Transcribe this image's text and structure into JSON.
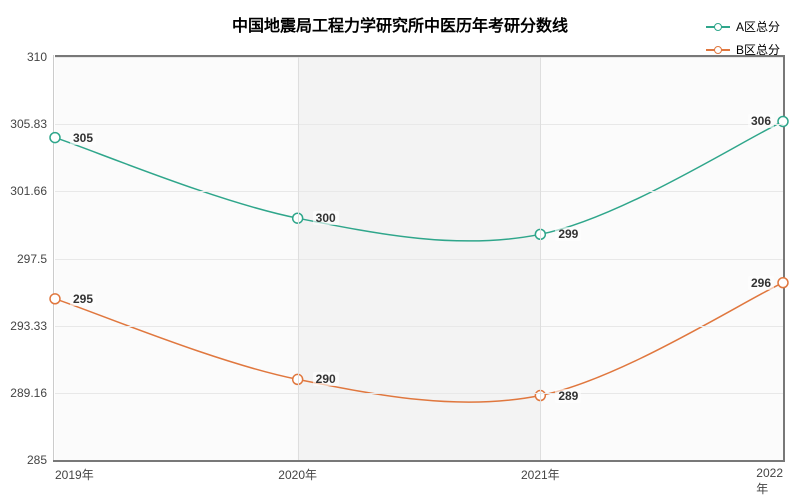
{
  "chart": {
    "type": "line",
    "title": "中国地震局工程力学研究所中医历年考研分数线",
    "title_fontsize": 16,
    "background_color": "#ffffff",
    "alt_band_color": "#f3f3f3",
    "grid_color": "#dedede",
    "border_color": "#787878",
    "x": {
      "categories": [
        "2019年",
        "2020年",
        "2021年",
        "2022年"
      ],
      "label_fontsize": 12
    },
    "y": {
      "min": 285,
      "max": 310,
      "ticks": [
        285,
        289.16,
        293.33,
        297.5,
        301.66,
        305.83,
        310
      ],
      "label_fontsize": 12
    },
    "legend": {
      "position": "top-right",
      "fontsize": 12
    },
    "series": [
      {
        "name": "A区总分",
        "color": "#2fa68b",
        "line_width": 1.5,
        "marker": "circle",
        "marker_size": 5,
        "smooth": true,
        "values": [
          305,
          300,
          299,
          306
        ],
        "labels": [
          "305",
          "300",
          "299",
          "306"
        ]
      },
      {
        "name": "B区总分",
        "color": "#e0773e",
        "line_width": 1.5,
        "marker": "circle",
        "marker_size": 5,
        "smooth": true,
        "values": [
          295,
          290,
          289,
          296
        ],
        "labels": [
          "295",
          "290",
          "289",
          "296"
        ]
      }
    ]
  }
}
